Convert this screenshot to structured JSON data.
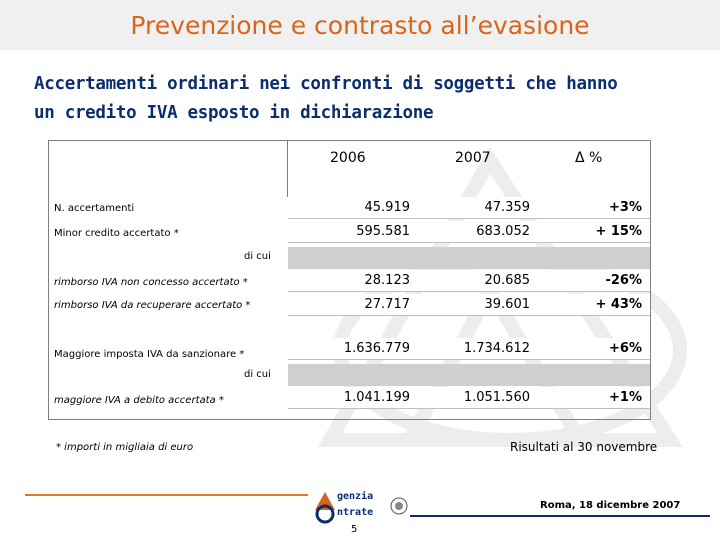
{
  "header": {
    "title": "Prevenzione e contrasto all’evasione"
  },
  "subtitle": {
    "line1": "Accertamenti ordinari nei confronti di soggetti che hanno",
    "line2": "un credito IVA esposto in dichiarazione"
  },
  "table": {
    "columns": [
      "2006",
      "2007",
      "Δ %"
    ],
    "rows": [
      {
        "label": "N. accertamenti",
        "v2006": "45.919",
        "v2007": "47.359",
        "delta": "+3%"
      },
      {
        "label": "Minor credito accertato *",
        "v2006": "595.581",
        "v2007": "683.052",
        "delta": "+ 15%"
      },
      {
        "label": "rimborso IVA non concesso accertato *",
        "v2006": "28.123",
        "v2007": "20.685",
        "delta": "-26%"
      },
      {
        "label": "rimborso IVA da recuperare accertato *",
        "v2006": "27.717",
        "v2007": "39.601",
        "delta": "+ 43%"
      },
      {
        "label": "Maggiore imposta IVA da sanzionare *",
        "v2006": "1.636.779",
        "v2007": "1.734.612",
        "delta": "+6%"
      },
      {
        "label": "maggiore IVA a debito accertata *",
        "v2006": "1.041.199",
        "v2007": "1.051.560",
        "delta": "+1%"
      }
    ],
    "di_cui_1": "di cui",
    "di_cui_2": "di cui"
  },
  "footnote": "* importi in migliaia di euro",
  "note_right": "Risultati al 30 novembre",
  "footer": {
    "date": "Roma, 18 dicembre 2007",
    "page": "5",
    "logo_text_top": "genzia",
    "logo_text_bottom": "ntrate"
  },
  "colors": {
    "title": "#d9651c",
    "subtitle": "#0b2e6f",
    "band": "#cfcfcf"
  }
}
